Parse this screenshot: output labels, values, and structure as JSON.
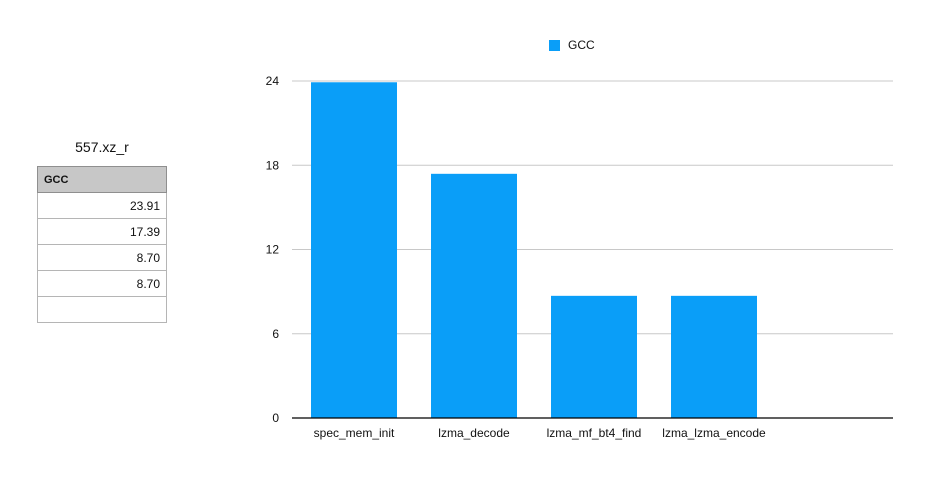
{
  "table": {
    "title": "557.xz_r",
    "header": "GCC",
    "rows": [
      "23.91",
      "17.39",
      "8.70",
      "8.70",
      ""
    ]
  },
  "legend": {
    "label": "GCC"
  },
  "colors": {
    "series": "#0a9ef8",
    "grid": "#c8c8c8",
    "axis": "#000000"
  },
  "chart_data": {
    "type": "bar",
    "title": "",
    "xlabel": "",
    "ylabel": "",
    "categories": [
      "spec_mem_init",
      "lzma_decode",
      "lzma_mf_bt4_find",
      "lzma_lzma_encode"
    ],
    "series": [
      {
        "name": "GCC",
        "values": [
          23.91,
          17.39,
          8.7,
          8.7
        ]
      }
    ],
    "ylim": [
      0,
      24
    ],
    "yticks": [
      0,
      6,
      12,
      18,
      24
    ],
    "grid": true,
    "legend": "top-center"
  }
}
